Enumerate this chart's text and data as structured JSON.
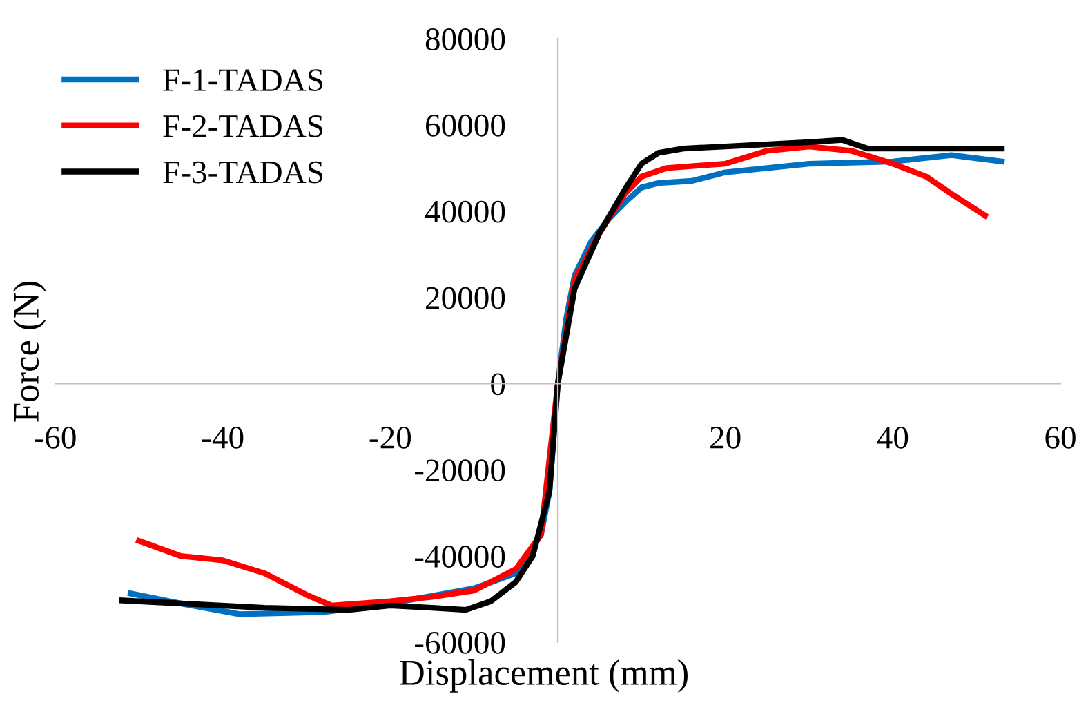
{
  "chart_data": {
    "type": "line",
    "xlabel": "Displacement (mm)",
    "ylabel": "Force (N)",
    "xlim": [
      -60,
      60
    ],
    "ylim": [
      -60000,
      80000
    ],
    "xticks": [
      -60,
      -40,
      -20,
      {
        "value": 0,
        "label": null
      },
      20,
      40,
      60
    ],
    "yticks": [
      -60000,
      -40000,
      -20000,
      0,
      20000,
      40000,
      60000,
      80000
    ],
    "grid": false,
    "legend": "top left",
    "marker": "none",
    "line_style": "solid",
    "series": [
      {
        "name": "F-1-TADAS",
        "color": "#0070c0",
        "x": [
          -51,
          -45,
          -38,
          -28,
          -20,
          -10,
          -5,
          -2,
          -1,
          0,
          1,
          2,
          4,
          6,
          8,
          10,
          12,
          16,
          20,
          30,
          40,
          47,
          53
        ],
        "values": [
          -48700,
          -51000,
          -53500,
          -53000,
          -51000,
          -47500,
          -44000,
          -35000,
          -25000,
          0,
          15000,
          25000,
          33000,
          38000,
          42000,
          45500,
          46500,
          47000,
          49000,
          51000,
          51500,
          53000,
          51500
        ]
      },
      {
        "name": "F-2-TADAS",
        "color": "#ff0000",
        "x": [
          -50,
          -45,
          -40,
          -35,
          -30,
          -27,
          -20,
          -15,
          -10,
          -5,
          -2,
          0,
          2,
          5,
          8,
          10,
          13,
          20,
          25,
          30,
          35,
          40,
          44,
          47,
          51
        ],
        "values": [
          -36500,
          -40000,
          -41000,
          -44000,
          -49000,
          -51500,
          -50500,
          -49500,
          -48000,
          -43000,
          -35000,
          0,
          24000,
          35000,
          44000,
          48000,
          50000,
          51000,
          54000,
          55000,
          54000,
          51000,
          48000,
          44000,
          39000
        ]
      },
      {
        "name": "F-3-TADAS",
        "color": "#000000",
        "x": [
          -52,
          -45,
          -35,
          -25,
          -20,
          -15,
          -11,
          -8,
          -5,
          -3,
          -1,
          0,
          2,
          5,
          8,
          10,
          12,
          15,
          20,
          30,
          34,
          37,
          45,
          53
        ],
        "values": [
          -50300,
          -51000,
          -52000,
          -52500,
          -51500,
          -52000,
          -52500,
          -50500,
          -46000,
          -40000,
          -25000,
          0,
          22000,
          35000,
          45000,
          51000,
          53500,
          54500,
          55000,
          56000,
          56500,
          54500,
          54500,
          54500
        ]
      }
    ]
  }
}
